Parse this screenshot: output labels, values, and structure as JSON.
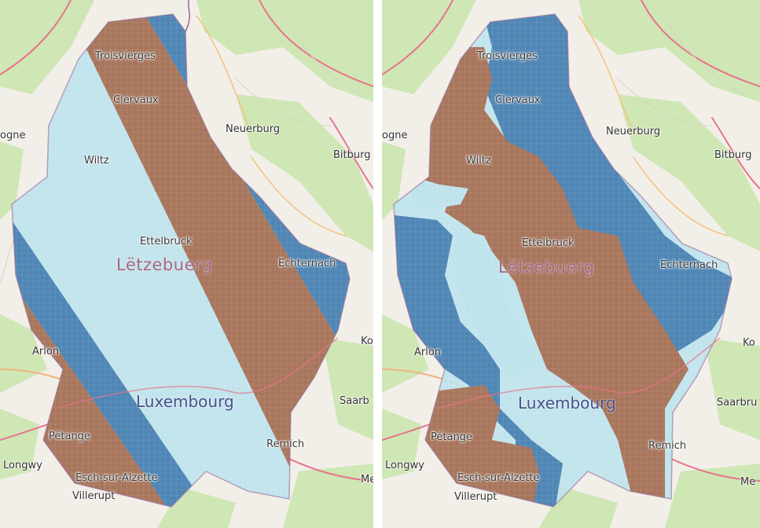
{
  "panels": [
    {
      "id": "left",
      "labels": {
        "troisvierges": "Troisvierges",
        "clervaux": "Clervaux",
        "neuerburg": "Neuerburg",
        "ogne": "ogne",
        "bitburg": "Bitburg",
        "wiltz": "Wiltz",
        "ettelbruck": "Ettelbruck",
        "letzebuerg": "Lëtzebuerg",
        "echternach": "Echternach",
        "arlon": "Arlon",
        "ko": "Ko",
        "luxembourg": "Luxembourg",
        "saarb": "Saarb",
        "petange": "Pétange",
        "remich": "Remich",
        "longwy": "Longwy",
        "esch": "Esch-sur-Alzette",
        "villerupt": "Villerupt",
        "me": "Me"
      }
    },
    {
      "id": "right",
      "labels": {
        "troisvierges": "Troisvierges",
        "clervaux": "Clervaux",
        "neuerburg": "Neuerburg",
        "ogne": "ogne",
        "bitburg": "Bitburg",
        "wiltz": "Wiltz",
        "ettelbruck": "Ettelbruck",
        "letzebuerg": "Lëtzebuerg",
        "echternach": "Echternach",
        "arlon": "Arlon",
        "ko": "Ko",
        "luxembourg": "Luxembourg",
        "saarbru": "Saarbru",
        "petange": "Pétange",
        "remich": "Remich",
        "longwy": "Longwy",
        "esch": "Esch-sur-Alzette",
        "villerupt": "Villerupt",
        "me": "Me"
      }
    }
  ],
  "colors": {
    "zone_dark_blue": "#4f86b5",
    "zone_light_blue": "#bfe3ec",
    "zone_brown": "#a8765c",
    "map_background": "#f2efe9",
    "forest": "#cfe6b5",
    "road_major": "#e8738c",
    "border": "#9a6a9a"
  }
}
